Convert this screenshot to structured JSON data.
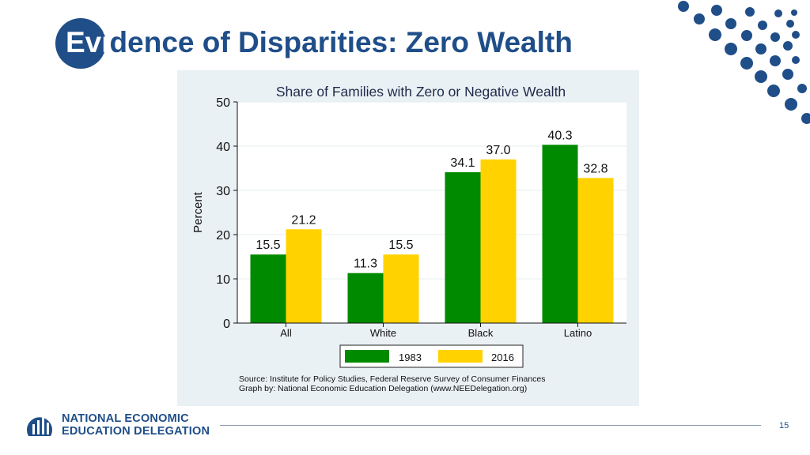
{
  "slide": {
    "title_lead": "Evi",
    "title_rest": "dence of Disparities: Zero Wealth",
    "page_number": "15"
  },
  "logo": {
    "line1": "NATIONAL ECONOMIC",
    "line2": "EDUCATION DELEGATION"
  },
  "colors": {
    "brand_blue": "#1f4e88",
    "series_1983": "#008a00",
    "series_2016": "#ffd200",
    "plot_background": "#eaf1f4"
  },
  "chart_data": {
    "type": "bar",
    "title": "Share of Families with Zero or Negative Wealth",
    "xlabel": "",
    "ylabel": "Percent",
    "ylim": [
      0,
      50
    ],
    "yticks": [
      0,
      10,
      20,
      30,
      40,
      50
    ],
    "categories": [
      "All",
      "White",
      "Black",
      "Latino"
    ],
    "series": [
      {
        "name": "1983",
        "values": [
          15.5,
          11.3,
          34.1,
          40.3
        ]
      },
      {
        "name": "2016",
        "values": [
          21.2,
          15.5,
          37.0,
          32.8
        ]
      }
    ],
    "data_labels": [
      [
        "15.5",
        "11.3",
        "34.1",
        "40.3"
      ],
      [
        "21.2",
        "15.5",
        "37.0",
        "32.8"
      ]
    ],
    "legend_position": "bottom",
    "grid": true,
    "source_line1": "Source: Institute for Policy Studies, Federal Reserve Survey of Consumer Finances",
    "source_line2": "Graph by: National Economic Education Delegation (www.NEEDelegation.org)"
  }
}
